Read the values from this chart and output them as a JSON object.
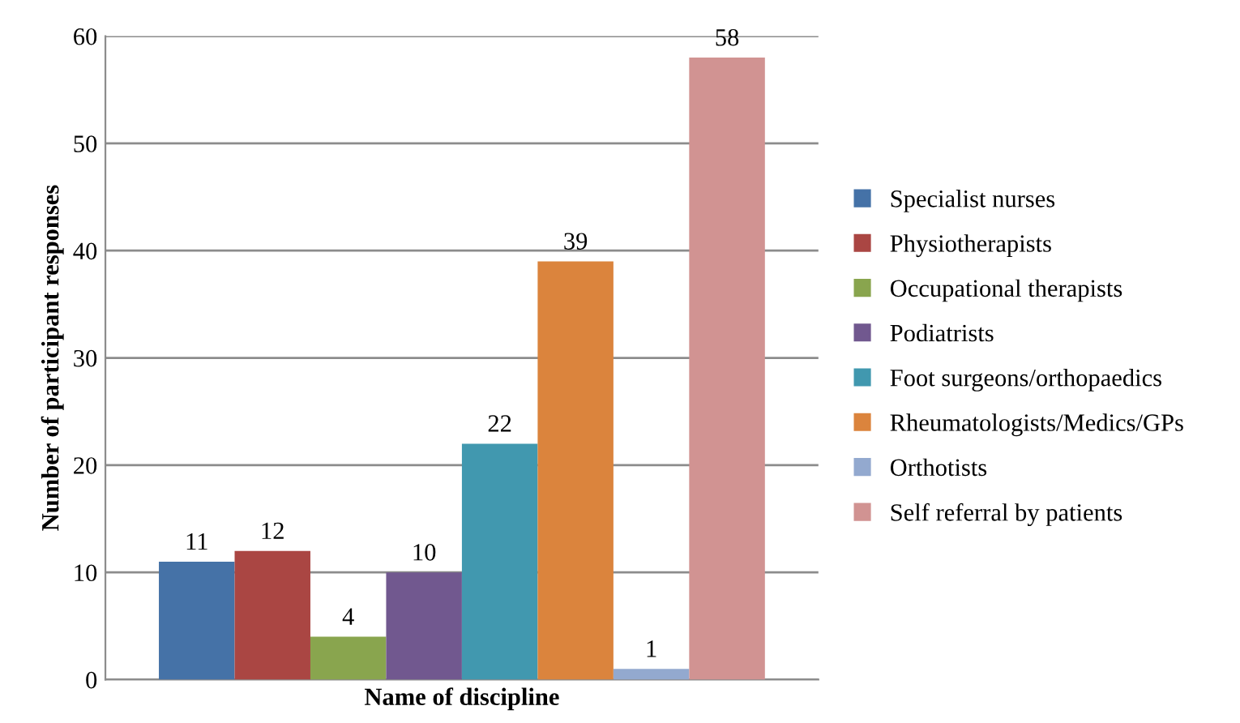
{
  "chart_data": {
    "type": "bar",
    "xlabel": "Name of discipline",
    "ylabel": "Number of participant responses",
    "categories": [
      null
    ],
    "series": [
      {
        "name": "Specialist nurses",
        "color": "#4572a7",
        "values": [
          11
        ]
      },
      {
        "name": "Physiotherapists",
        "color": "#aa4643",
        "values": [
          12
        ]
      },
      {
        "name": "Occupational therapists",
        "color": "#89a54e",
        "values": [
          4
        ]
      },
      {
        "name": "Podiatrists",
        "color": "#71588f",
        "values": [
          10
        ]
      },
      {
        "name": "Foot surgeons/orthopaedics",
        "color": "#4198af",
        "values": [
          22
        ]
      },
      {
        "name": "Rheumatologists/Medics/GPs",
        "color": "#db843d",
        "values": [
          39
        ]
      },
      {
        "name": "Orthotists",
        "color": "#93a9cf",
        "values": [
          1
        ]
      },
      {
        "name": "Self referral by patients",
        "color": "#d19392",
        "values": [
          58
        ]
      }
    ],
    "ylim": [
      0,
      60
    ],
    "yticks": [
      0,
      10,
      20,
      30,
      40,
      50,
      60
    ],
    "grid": "y",
    "legend": "right",
    "data_labels": true
  }
}
